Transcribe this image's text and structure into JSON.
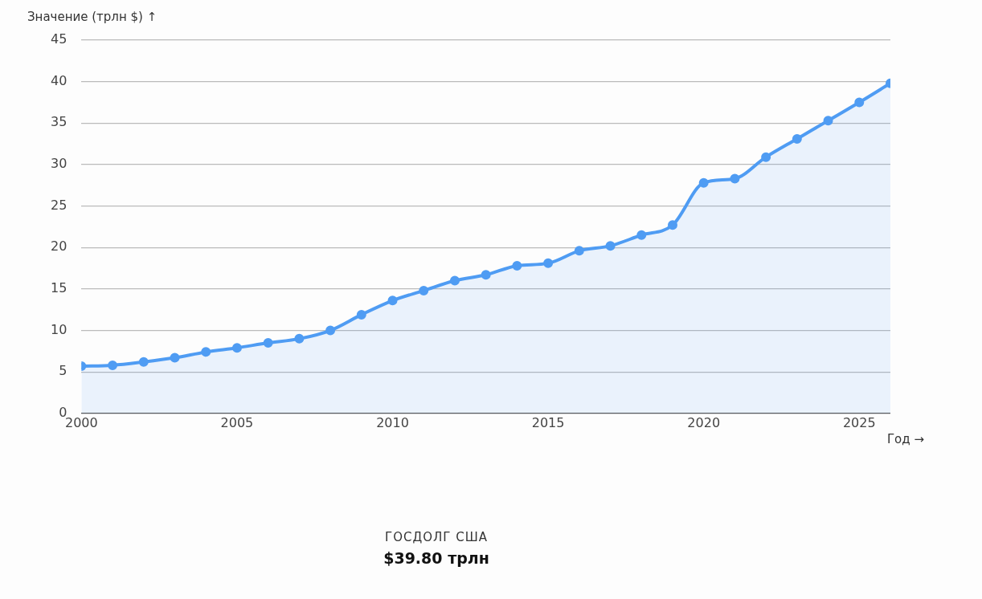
{
  "chart_data": {
    "type": "area",
    "xlabel": "Год →",
    "ylabel": "Значение (трлн $) ↑",
    "x": [
      2000,
      2001,
      2002,
      2003,
      2004,
      2005,
      2006,
      2007,
      2008,
      2009,
      2010,
      2011,
      2012,
      2013,
      2014,
      2015,
      2016,
      2017,
      2018,
      2019,
      2020,
      2021,
      2022,
      2023,
      2024,
      2025,
      2026
    ],
    "series": [
      {
        "color": "#4f9cf3",
        "values": [
          5.7,
          5.8,
          6.2,
          6.7,
          7.4,
          7.9,
          8.5,
          9.0,
          10.0,
          11.9,
          13.6,
          14.8,
          16.0,
          16.7,
          17.8,
          18.1,
          19.6,
          20.2,
          21.5,
          22.7,
          27.8,
          28.3,
          30.9,
          33.1,
          35.3,
          37.5,
          39.8
        ]
      }
    ],
    "xlim": [
      2000,
      2026
    ],
    "xticks": [
      2000,
      2005,
      2010,
      2015,
      2020,
      2025
    ],
    "ylim": [
      0,
      45
    ],
    "yticks": [
      0,
      5,
      10,
      15,
      20,
      25,
      30,
      35,
      40,
      45
    ],
    "grid": "y",
    "marker": "circle",
    "annotations": [
      "ГОСДОЛГ США",
      "$39.80 трлн"
    ]
  }
}
